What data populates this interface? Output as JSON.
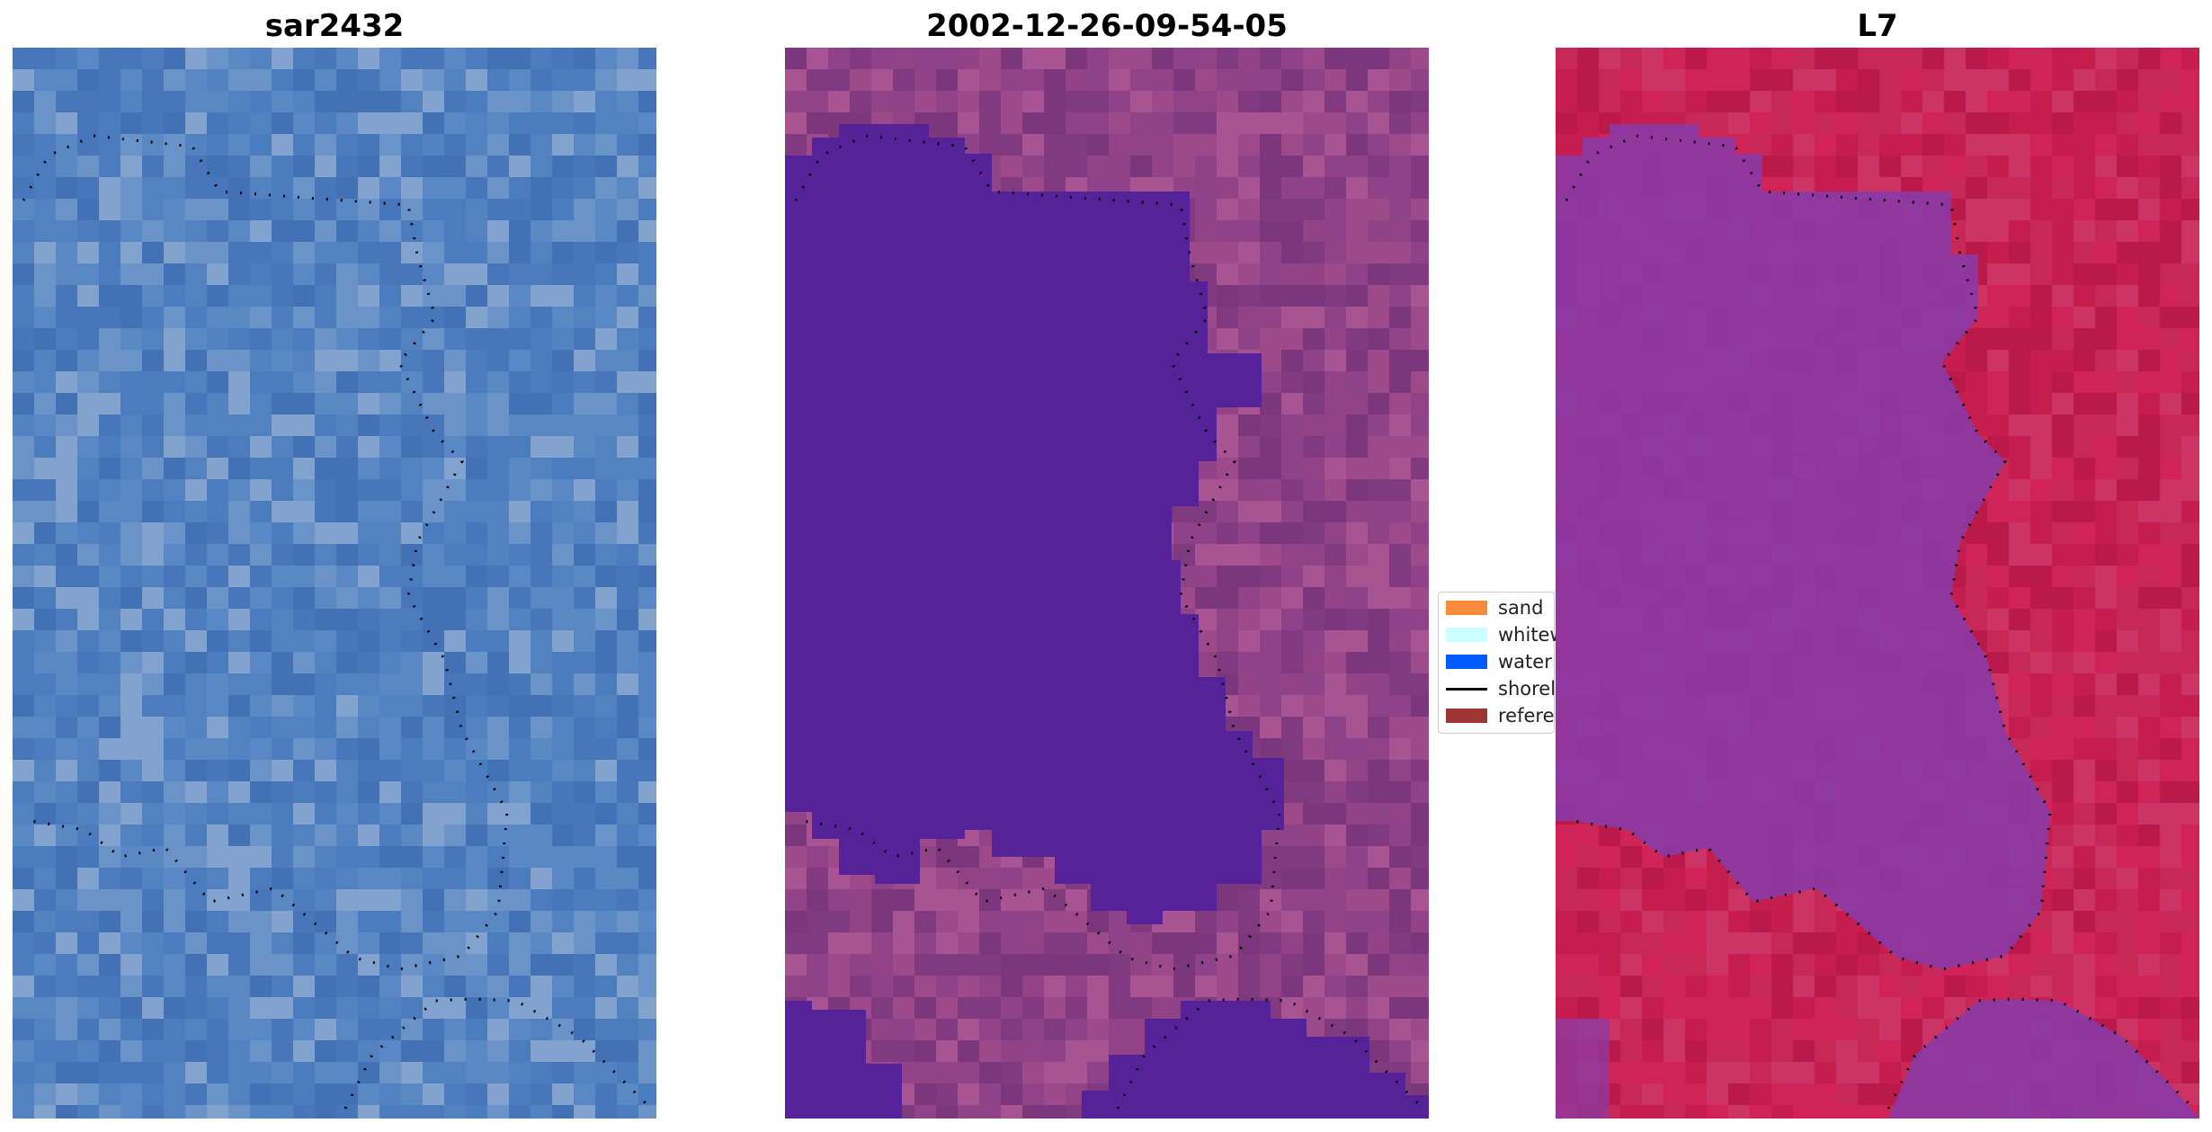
{
  "panels": [
    {
      "title": "sar2432",
      "view": "rgb",
      "image": "satellite-rgb-image"
    },
    {
      "title": "2002-12-26-09-54-05",
      "view": "classified",
      "image": "classified-image"
    },
    {
      "title": "L7",
      "view": "index",
      "image": "index-image"
    }
  ],
  "legend": {
    "items": [
      {
        "label": "sand",
        "color": "#fb8b3c",
        "kind": "patch"
      },
      {
        "label": "whitew",
        "color": "#ccffff",
        "kind": "patch"
      },
      {
        "label": "water",
        "color": "#0059ff",
        "kind": "patch"
      },
      {
        "label": "shorel",
        "color": "#000000",
        "kind": "line"
      },
      {
        "label": "referer",
        "color": "#9e3535",
        "kind": "patch"
      }
    ]
  },
  "colors": {
    "water_class": "#55229a",
    "rgb_base": "#4f80bb",
    "index_water": "#8a3aa6",
    "index_land": "#c82050"
  }
}
